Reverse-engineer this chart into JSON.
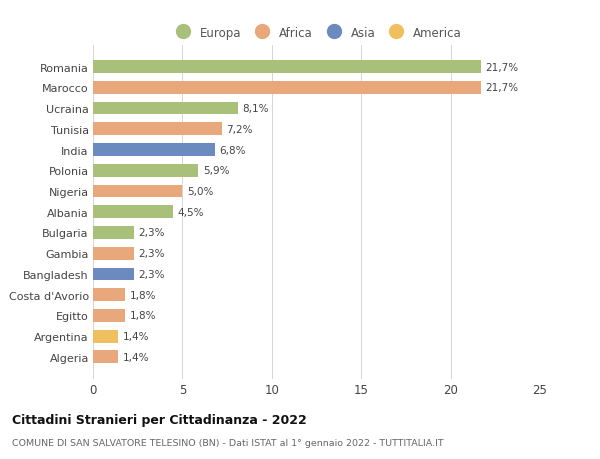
{
  "categories": [
    "Romania",
    "Marocco",
    "Ucraina",
    "Tunisia",
    "India",
    "Polonia",
    "Nigeria",
    "Albania",
    "Bulgaria",
    "Gambia",
    "Bangladesh",
    "Costa d'Avorio",
    "Egitto",
    "Argentina",
    "Algeria"
  ],
  "values": [
    21.7,
    21.7,
    8.1,
    7.2,
    6.8,
    5.9,
    5.0,
    4.5,
    2.3,
    2.3,
    2.3,
    1.8,
    1.8,
    1.4,
    1.4
  ],
  "labels": [
    "21,7%",
    "21,7%",
    "8,1%",
    "7,2%",
    "6,8%",
    "5,9%",
    "5,0%",
    "4,5%",
    "2,3%",
    "2,3%",
    "2,3%",
    "1,8%",
    "1,8%",
    "1,4%",
    "1,4%"
  ],
  "continents": [
    "Europa",
    "Africa",
    "Europa",
    "Africa",
    "Asia",
    "Europa",
    "Africa",
    "Europa",
    "Europa",
    "Africa",
    "Asia",
    "Africa",
    "Africa",
    "America",
    "Africa"
  ],
  "colors": {
    "Europa": "#a8c07a",
    "Africa": "#e8a87c",
    "Asia": "#6b8bbf",
    "America": "#f0c060"
  },
  "legend_order": [
    "Europa",
    "Africa",
    "Asia",
    "America"
  ],
  "title": "Cittadini Stranieri per Cittadinanza - 2022",
  "subtitle": "COMUNE DI SAN SALVATORE TELESINO (BN) - Dati ISTAT al 1° gennaio 2022 - TUTTITALIA.IT",
  "xlim": [
    0,
    25
  ],
  "xticks": [
    0,
    5,
    10,
    15,
    20,
    25
  ],
  "background_color": "#ffffff",
  "grid_color": "#d0d0d0"
}
